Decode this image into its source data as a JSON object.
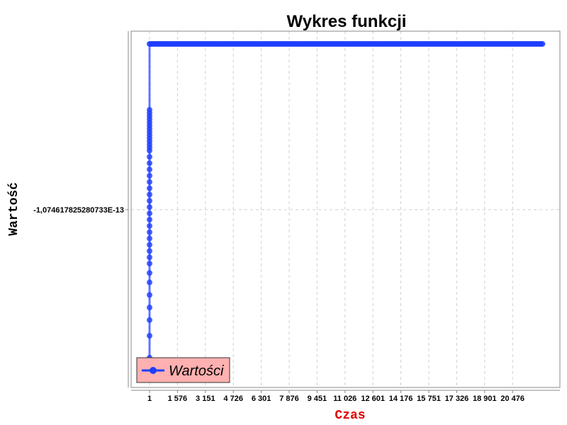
{
  "chart_data": {
    "type": "line",
    "title": "Wykres funkcji",
    "xlabel": "Czas",
    "ylabel": "Wartość",
    "x_ticks": [
      "1",
      "1 576",
      "3 151",
      "4 726",
      "6 301",
      "7 876",
      "9 451",
      "11 026",
      "12 601",
      "14 176",
      "15 751",
      "17 326",
      "18 901",
      "20 476"
    ],
    "y_ticks": [
      "-1,074617825280733E-13"
    ],
    "grid": true,
    "legend_position": "bottom-left",
    "colors": {
      "series": "#1f3dff",
      "legend_bg": "#ffb0b0",
      "xlabel": "#e00000"
    },
    "series": [
      {
        "name": "Wartości",
        "plateau": {
          "x_range": [
            1,
            20476
          ],
          "y_level": "max"
        },
        "initial_transient_y_fraction": [
          0.21,
          0.22,
          0.23,
          0.24,
          0.25,
          0.26,
          0.27,
          0.28,
          0.29,
          0.3,
          0.31,
          0.32,
          0.33,
          0.34,
          0.36,
          0.38,
          0.4,
          0.42,
          0.44,
          0.46,
          0.48,
          0.5,
          0.52,
          0.54,
          0.56,
          0.58,
          0.6,
          0.62,
          0.64,
          0.66,
          0.68,
          0.7,
          0.73,
          0.76,
          0.8,
          0.84,
          0.88,
          0.93,
          1.0
        ]
      }
    ]
  }
}
